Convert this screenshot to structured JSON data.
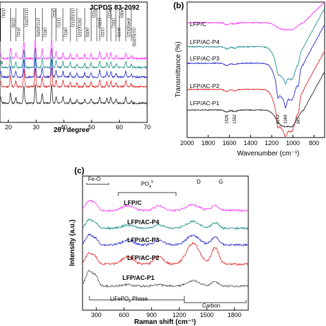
{
  "chart_data": [
    {
      "panel": "a",
      "type": "line",
      "title": "JCPDS 83-2092",
      "xlabel": "2θ / degree",
      "ylabel": "",
      "xlim": [
        17,
        70
      ],
      "xticks": [
        20,
        30,
        40,
        50,
        60,
        70
      ],
      "reference_peaks": [
        {
          "x": 17.2,
          "label": "(101)"
        },
        {
          "x": 20.8,
          "label": "(210)"
        },
        {
          "x": 22.7,
          "label": "(011)"
        },
        {
          "x": 25.6,
          "label": "(111)(201)"
        },
        {
          "x": 29.7,
          "label": "(211)(020)"
        },
        {
          "x": 32.2,
          "label": "(301)"
        },
        {
          "x": 35.6,
          "label": "(311)"
        },
        {
          "x": 37.2,
          "label": "(121)"
        },
        {
          "x": 39.7,
          "label": "(401)"
        },
        {
          "x": 42.3,
          "label": "(112)(212)"
        },
        {
          "x": 44.7,
          "label": "(321)(222)"
        },
        {
          "x": 47.5,
          "label": "(420)"
        },
        {
          "x": 49.8,
          "label": "(022)"
        },
        {
          "x": 51.9,
          "label": "(131)"
        },
        {
          "x": 52.9,
          "label": "(222)"
        },
        {
          "x": 55.5,
          "label": "(412)"
        },
        {
          "x": 56.9,
          "label": "(331)"
        },
        {
          "x": 58.8,
          "label": "(610)"
        },
        {
          "x": 59.9,
          "label": "(430)"
        },
        {
          "x": 62.3,
          "label": "(040)(512)"
        },
        {
          "x": 64.3,
          "label": "(113)(203)"
        }
      ],
      "series": [
        {
          "name": "",
          "color": "#ff33ff",
          "offset": 4,
          "partial_label": "s"
        },
        {
          "name": "",
          "color": "#1c8f8a",
          "offset": 3
        },
        {
          "name": "",
          "color": "#2222cc",
          "offset": 2
        },
        {
          "name": "",
          "color": "#dd2222",
          "offset": 1
        },
        {
          "name": "",
          "color": "#222222",
          "offset": 0
        }
      ]
    },
    {
      "panel": "b",
      "type": "line",
      "xlabel": "Wavenumber (cm⁻¹)",
      "ylabel": "Transmittance (%)",
      "xlim": [
        2000,
        700
      ],
      "xreversed": true,
      "xticks": [
        2000,
        1800,
        1600,
        1400,
        1200,
        1000,
        800
      ],
      "band_labels": [
        "1626",
        "1552",
        "1143",
        "1069",
        "947"
      ],
      "band_positions": [
        1626,
        1552,
        1143,
        1069,
        947
      ],
      "series": [
        {
          "name": "LFP/C",
          "color": "#ff33ff"
        },
        {
          "name": "LFP/AC-P4",
          "color": "#1c8f8a"
        },
        {
          "name": "LFP/AC-P3",
          "color": "#2222cc"
        },
        {
          "name": "LFP/AC-P2",
          "color": "#dd2222"
        },
        {
          "name": "LFP/AC-P1",
          "color": "#222222"
        }
      ]
    },
    {
      "panel": "c",
      "type": "line",
      "xlabel": "Raman shift (cm⁻¹)",
      "ylabel": "Intensity (a.u.)",
      "xlim": [
        150,
        1950
      ],
      "xticks": [
        300,
        600,
        900,
        1200,
        1500,
        1800
      ],
      "annotations": {
        "fe_o": "Fe-O",
        "po4": "PO",
        "po4_sup": "3-",
        "po4_sub": "4",
        "d_band": "D",
        "g_band": "G",
        "lifepo4_phase": "LiFePO",
        "lifepo4_sub": "4",
        "lifepo4_tail": " Phase",
        "carbon": "Carbon"
      },
      "series": [
        {
          "name": "LFP/C",
          "color": "#ff33ff"
        },
        {
          "name": "LFP/AC-P4",
          "color": "#1c8f8a"
        },
        {
          "name": "LFP/AC-P3",
          "color": "#2222cc"
        },
        {
          "name": "LFP/AC-P2",
          "color": "#dd2222"
        },
        {
          "name": "LFP/AC-P1",
          "color": "#555555"
        }
      ]
    }
  ],
  "panel_labels": {
    "b": "(b)",
    "c": "(c)"
  }
}
